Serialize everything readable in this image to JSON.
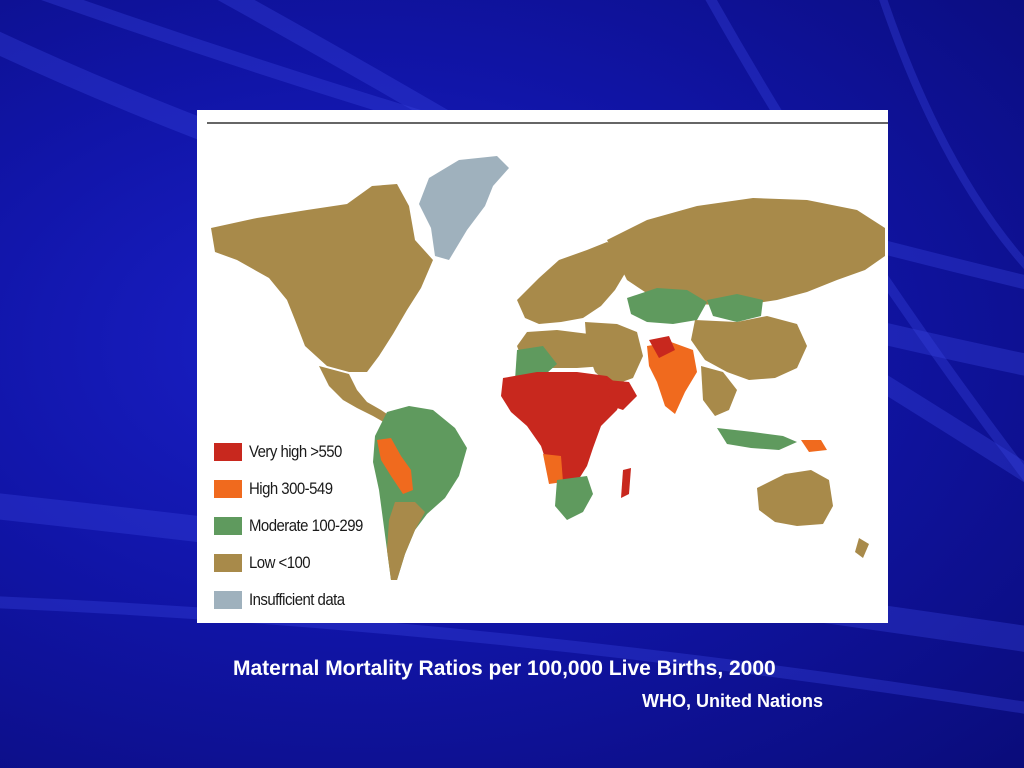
{
  "legend": {
    "items": [
      {
        "label": "Very high >550",
        "color": "#c8281e"
      },
      {
        "label": "High 300-549",
        "color": "#f06a1e"
      },
      {
        "label": "Moderate 100-299",
        "color": "#5f9a5e"
      },
      {
        "label": "Low <100",
        "color": "#a88a4a"
      },
      {
        "label": "Insufficient data",
        "color": "#9fb1bd"
      }
    ]
  },
  "caption": {
    "title": "Maternal Mortality Ratios per 100,000 Live Births, 2000",
    "source": "WHO, United Nations"
  },
  "colors": {
    "background": "#1115a8",
    "ocean": "#ffffff",
    "very_high": "#c8281e",
    "high": "#f06a1e",
    "moderate": "#5f9a5e",
    "low": "#a88a4a",
    "insufficient": "#9fb1bd"
  }
}
